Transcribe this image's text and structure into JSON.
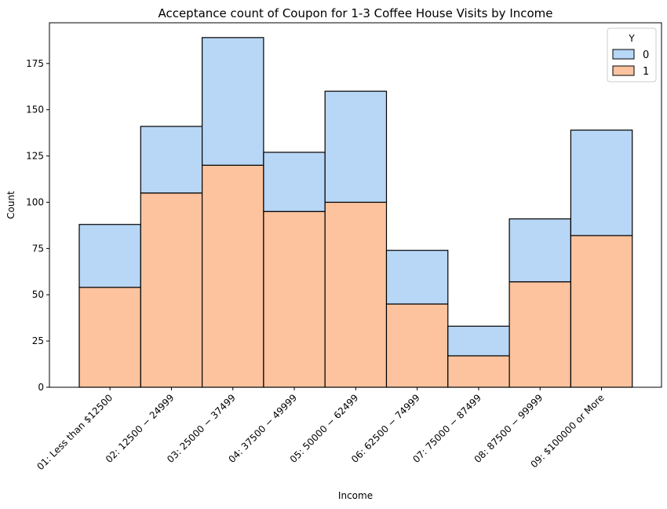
{
  "chart_data": {
    "type": "bar",
    "stacked": true,
    "title": "Acceptance count of Coupon for 1-3 Coffee House Visits by Income",
    "xlabel": "Income",
    "ylabel": "Count",
    "ylim": [
      0,
      197
    ],
    "yticks": [
      0,
      25,
      50,
      75,
      100,
      125,
      150,
      175
    ],
    "categories": [
      "01: Less than $12500",
      "02: $12500 - $24999",
      "03: $25000 - $37499",
      "04: $37500 - $49999",
      "05: $50000 - $62499",
      "06: $62500 - $74999",
      "07: $75000 - $87499",
      "08: $87500 - $99999",
      "09: $100000 or More"
    ],
    "tick_labels": [
      "01: Less than $12500",
      "02: 12500 − 24999",
      "03: 25000 − 37499",
      "04: 37500 − 49999",
      "05: 50000 − 62499",
      "06: 62500 − 74999",
      "07: 75000 − 87499",
      "08: 87500 − 99999",
      "09: $100000 or More"
    ],
    "legend": {
      "title": "Y",
      "placement": "top-right"
    },
    "series": [
      {
        "name": "1",
        "color": "#fdc39e",
        "values": [
          54,
          105,
          120,
          95,
          100,
          45,
          17,
          57,
          82
        ]
      },
      {
        "name": "0",
        "color": "#b8d6f5",
        "values": [
          34,
          36,
          69,
          32,
          60,
          29,
          16,
          34,
          57
        ]
      }
    ],
    "grid": false
  }
}
